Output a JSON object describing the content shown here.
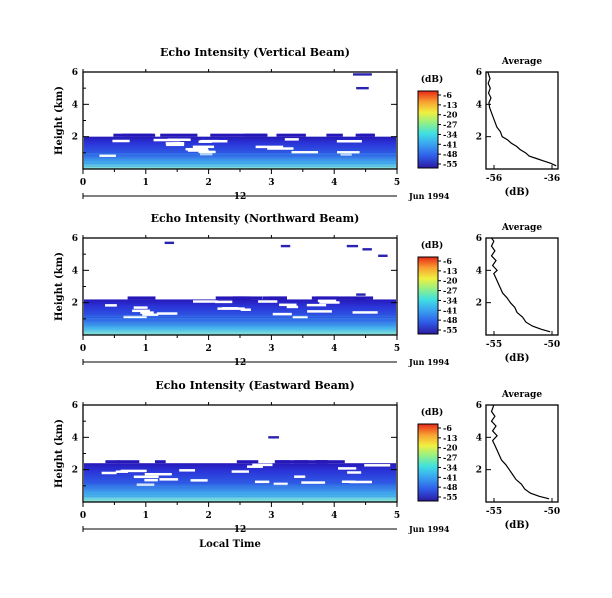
{
  "chart_data": [
    {
      "type": "heatmap",
      "title": "Echo Intensity (Vertical Beam)",
      "ylabel": "Height (km)",
      "xlim": [
        0,
        5
      ],
      "ylim": [
        0,
        6
      ],
      "xticks": [
        "0",
        "1",
        "2",
        "3",
        "4",
        "5"
      ],
      "yticks": [
        "2",
        "4",
        "6"
      ],
      "time_label": "12",
      "date_label": "Jun 1994",
      "colorbar": {
        "unit": "(dB)",
        "ticks": [
          "-6",
          "-13",
          "-20",
          "-27",
          "-34",
          "-41",
          "-48",
          "-55"
        ]
      },
      "echo_top_km": 2.0,
      "upper_returns": [
        {
          "x0": 4.3,
          "x1": 4.6,
          "y": 5.85
        },
        {
          "x0": 4.35,
          "x1": 4.55,
          "y": 5.0
        }
      ],
      "average_profile": {
        "title": "Average",
        "xlabel": "(dB)",
        "xticks": [
          "-56",
          "-36"
        ],
        "yticks": [
          "2",
          "4",
          "6"
        ],
        "xlim": [
          -56,
          -36
        ],
        "ylim": [
          0,
          6
        ],
        "points": [
          [
            -36.5,
            0.2
          ],
          [
            -38,
            0.35
          ],
          [
            -40,
            0.5
          ],
          [
            -42,
            0.65
          ],
          [
            -44,
            0.8
          ],
          [
            -45,
            1.0
          ],
          [
            -46.5,
            1.2
          ],
          [
            -47.5,
            1.4
          ],
          [
            -49,
            1.6
          ],
          [
            -50,
            1.8
          ],
          [
            -51.5,
            2.0
          ],
          [
            -52,
            2.3
          ],
          [
            -53,
            2.6
          ],
          [
            -53.5,
            2.9
          ],
          [
            -54,
            3.2
          ],
          [
            -54.5,
            3.5
          ],
          [
            -55,
            3.8
          ],
          [
            -55.2,
            4.1
          ],
          [
            -54.6,
            4.4
          ],
          [
            -55.3,
            4.7
          ],
          [
            -54.8,
            5.0
          ],
          [
            -55.4,
            5.3
          ],
          [
            -54.9,
            5.6
          ],
          [
            -55.5,
            6.0
          ]
        ]
      }
    },
    {
      "type": "heatmap",
      "title": "Echo Intensity (Northward Beam)",
      "ylabel": "Height (km)",
      "xlim": [
        0,
        5
      ],
      "ylim": [
        0,
        6
      ],
      "xticks": [
        "0",
        "1",
        "2",
        "3",
        "4",
        "5"
      ],
      "yticks": [
        "2",
        "4",
        "6"
      ],
      "time_label": "12",
      "date_label": "Jun 1994",
      "colorbar": {
        "unit": "(dB)",
        "ticks": [
          "-6",
          "-13",
          "-20",
          "-27",
          "-34",
          "-41",
          "-48",
          "-55"
        ]
      },
      "echo_top_km": 2.2,
      "upper_returns": [
        {
          "x0": 1.3,
          "x1": 1.45,
          "y": 5.7
        },
        {
          "x0": 3.15,
          "x1": 3.3,
          "y": 5.5
        },
        {
          "x0": 4.2,
          "x1": 4.38,
          "y": 5.5
        },
        {
          "x0": 4.45,
          "x1": 4.6,
          "y": 5.3
        },
        {
          "x0": 4.7,
          "x1": 4.85,
          "y": 4.9
        },
        {
          "x0": 4.35,
          "x1": 4.5,
          "y": 2.5
        }
      ],
      "average_profile": {
        "title": "Average",
        "xlabel": "(dB)",
        "xticks": [
          "-55",
          "-50"
        ],
        "yticks": [
          "2",
          "4",
          "6"
        ],
        "xlim": [
          -56,
          -49.5
        ],
        "ylim": [
          0,
          6
        ],
        "points": [
          [
            -50.2,
            0.2
          ],
          [
            -51,
            0.35
          ],
          [
            -51.8,
            0.55
          ],
          [
            -52.4,
            0.8
          ],
          [
            -52.7,
            1.1
          ],
          [
            -53.2,
            1.4
          ],
          [
            -53.4,
            1.7
          ],
          [
            -53.8,
            2.0
          ],
          [
            -54.1,
            2.3
          ],
          [
            -54.5,
            2.6
          ],
          [
            -54.7,
            2.9
          ],
          [
            -54.9,
            3.2
          ],
          [
            -55.1,
            3.5
          ],
          [
            -55.3,
            3.8
          ],
          [
            -55.0,
            4.0
          ],
          [
            -55.4,
            4.3
          ],
          [
            -55.1,
            4.6
          ],
          [
            -55.5,
            4.9
          ],
          [
            -55.2,
            5.2
          ],
          [
            -55.5,
            5.5
          ],
          [
            -55.3,
            5.8
          ],
          [
            -55.5,
            6.0
          ]
        ]
      }
    },
    {
      "type": "heatmap",
      "title": "Echo Intensity (Eastward Beam)",
      "ylabel": "Height (km)",
      "xlabel": "Local Time",
      "xlim": [
        0,
        5
      ],
      "ylim": [
        0,
        6
      ],
      "xticks": [
        "0",
        "1",
        "2",
        "3",
        "4",
        "5"
      ],
      "yticks": [
        "2",
        "4",
        "6"
      ],
      "time_label": "12",
      "date_label": "Jun 1994",
      "colorbar": {
        "unit": "(dB)",
        "ticks": [
          "-6",
          "-13",
          "-20",
          "-27",
          "-34",
          "-41",
          "-48",
          "-55"
        ]
      },
      "echo_top_km": 2.4,
      "upper_returns": [
        {
          "x0": 2.95,
          "x1": 3.12,
          "y": 4.0
        }
      ],
      "average_profile": {
        "title": "Average",
        "xlabel": "(dB)",
        "xticks": [
          "-55",
          "-50"
        ],
        "yticks": [
          "2",
          "4",
          "6"
        ],
        "xlim": [
          -56,
          -49.5
        ],
        "ylim": [
          0,
          6
        ],
        "points": [
          [
            -50.3,
            0.2
          ],
          [
            -51.2,
            0.35
          ],
          [
            -52,
            0.55
          ],
          [
            -52.5,
            0.8
          ],
          [
            -52.8,
            1.1
          ],
          [
            -53.3,
            1.4
          ],
          [
            -53.6,
            1.7
          ],
          [
            -53.9,
            2.0
          ],
          [
            -54.2,
            2.3
          ],
          [
            -54.6,
            2.6
          ],
          [
            -54.8,
            2.9
          ],
          [
            -55.0,
            3.2
          ],
          [
            -55.2,
            3.5
          ],
          [
            -55.4,
            3.8
          ],
          [
            -55.0,
            4.1
          ],
          [
            -55.4,
            4.4
          ],
          [
            -55.1,
            4.7
          ],
          [
            -55.5,
            5.0
          ],
          [
            -55.2,
            5.3
          ],
          [
            -55.5,
            5.6
          ],
          [
            -55.3,
            6.0
          ]
        ]
      }
    }
  ]
}
